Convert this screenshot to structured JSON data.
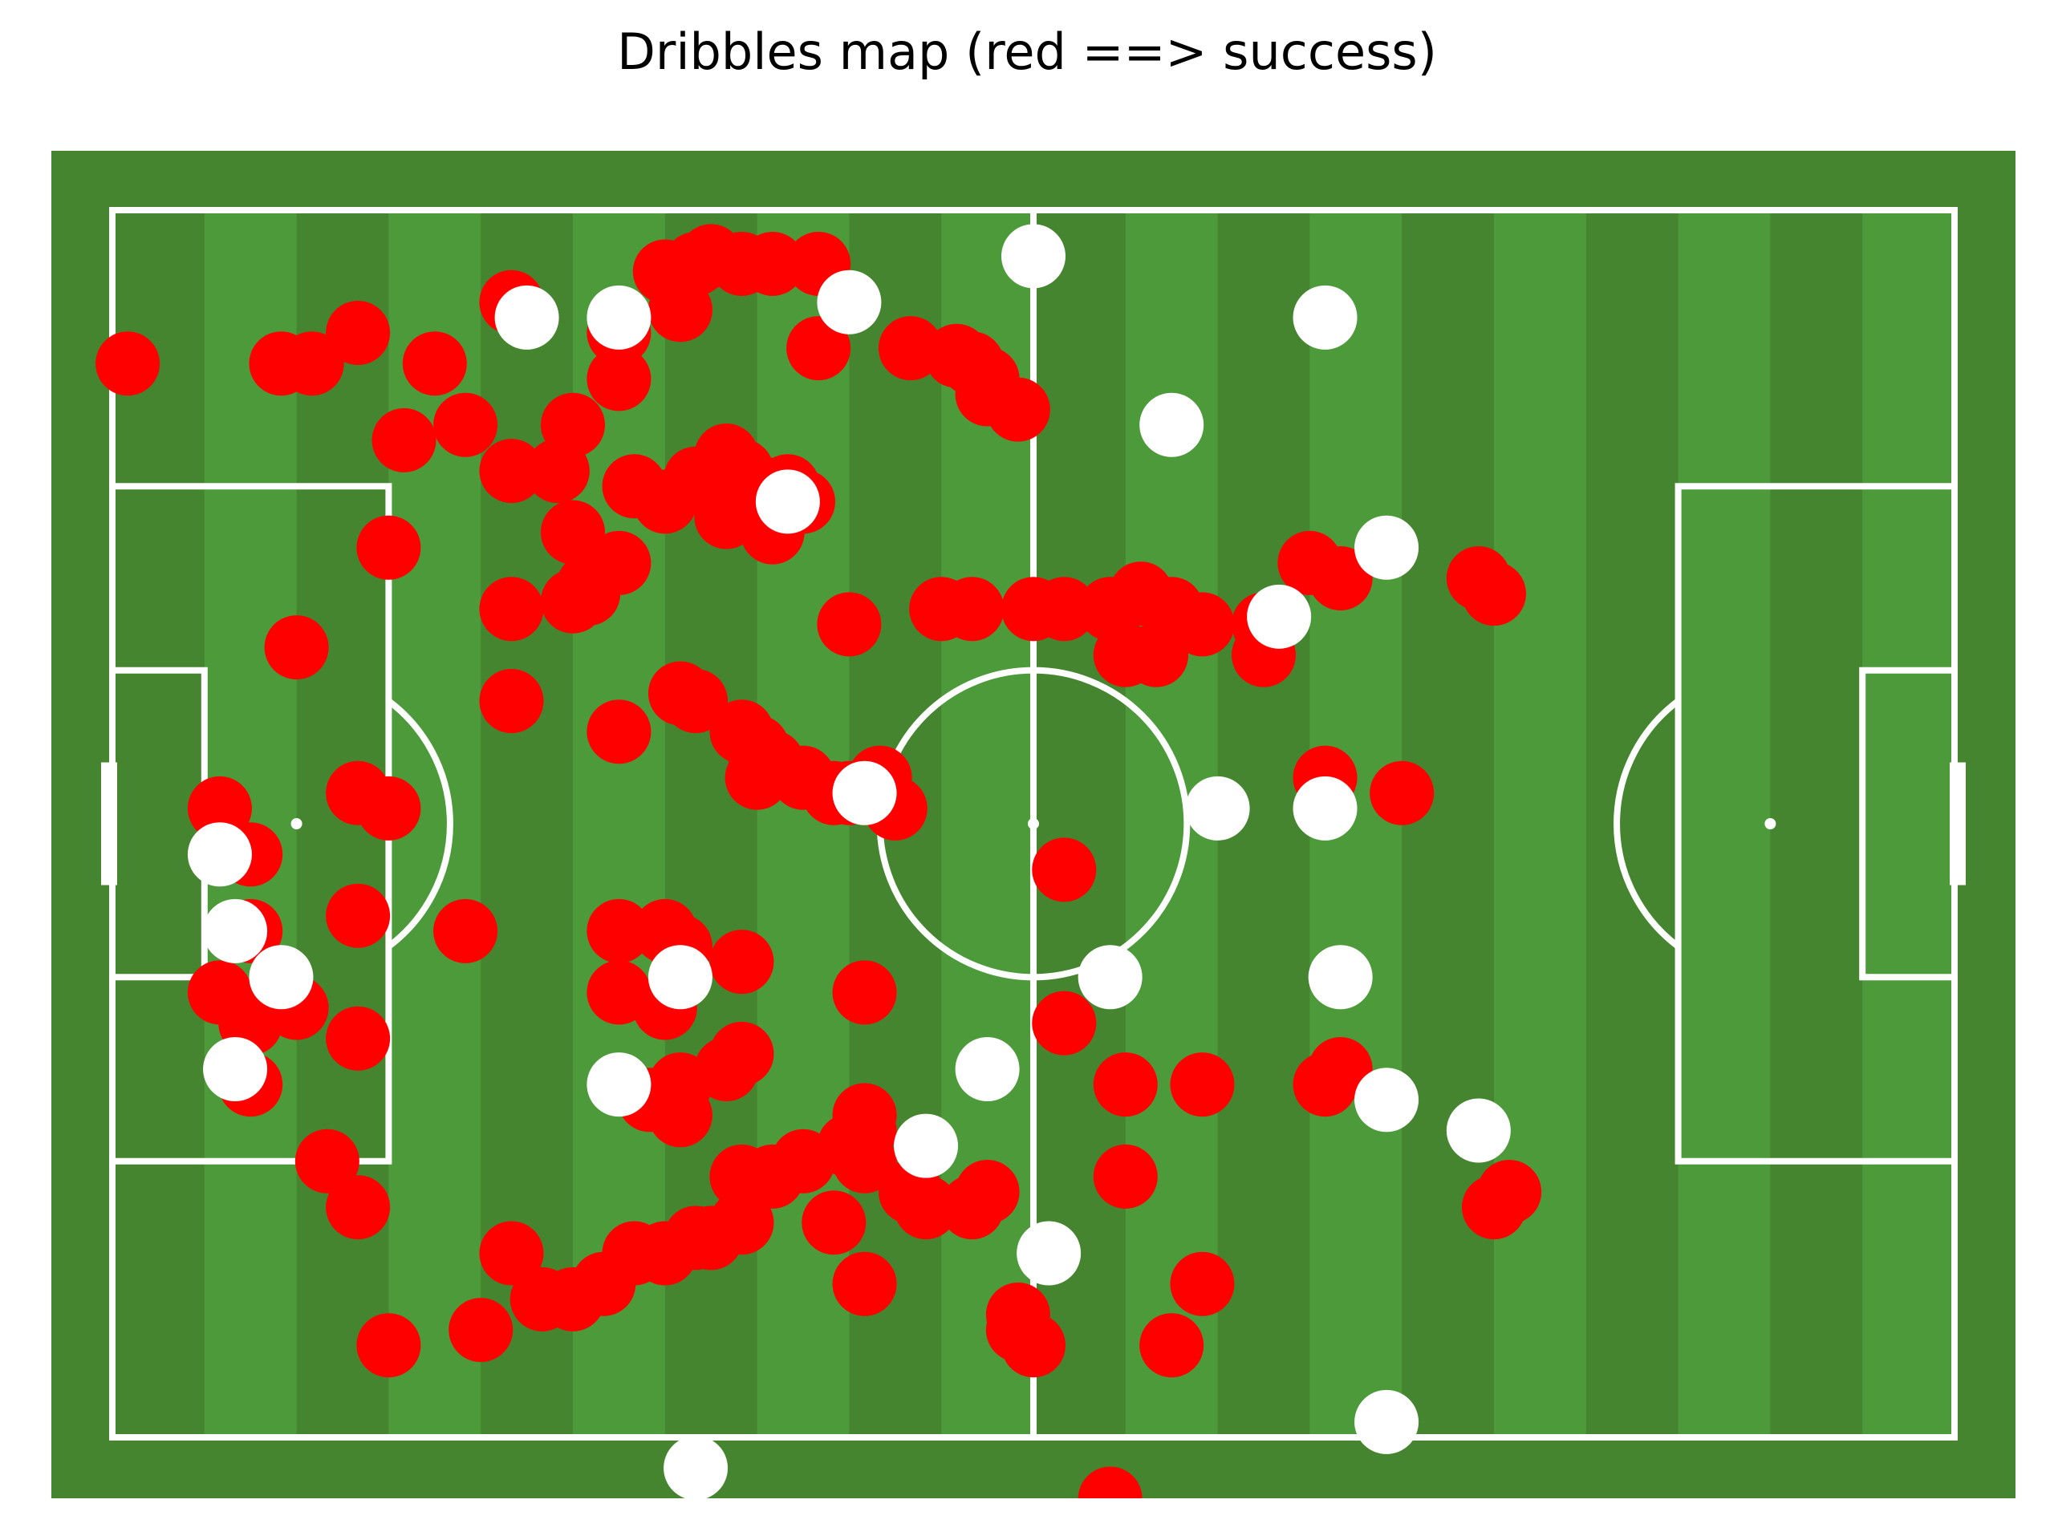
{
  "chart_data": {
    "type": "scatter",
    "title": "Dribbles map (red ==> success)",
    "xlabel": "",
    "ylabel": "",
    "xlim": [
      0,
      120
    ],
    "ylim": [
      0,
      80
    ],
    "y_inverted": true,
    "grid": false,
    "legend": "none",
    "colors": {
      "grass_light": "#4d9a3b",
      "grass_dark": "#45852f",
      "lines": "#ffffff",
      "success": "#ff0000",
      "fail": "#ffffff"
    },
    "series": [
      {
        "values_key": "success",
        "color": "#ff0000",
        "points": [
          [
            1,
            10
          ],
          [
            11,
            10
          ],
          [
            13,
            10
          ],
          [
            16,
            8
          ],
          [
            21,
            10
          ],
          [
            26,
            6
          ],
          [
            23,
            14
          ],
          [
            19,
            15
          ],
          [
            33,
            8
          ],
          [
            36,
            4
          ],
          [
            38,
            3.5
          ],
          [
            39,
            3
          ],
          [
            41,
            3.5
          ],
          [
            43,
            3.5
          ],
          [
            46,
            3.5
          ],
          [
            37,
            6.5
          ],
          [
            46,
            9
          ],
          [
            52,
            9
          ],
          [
            55,
            9.5
          ],
          [
            56,
            10
          ],
          [
            57,
            11
          ],
          [
            57,
            12
          ],
          [
            59,
            13
          ],
          [
            33,
            11
          ],
          [
            30,
            14
          ],
          [
            26,
            17
          ],
          [
            29,
            17
          ],
          [
            34,
            18
          ],
          [
            36,
            19
          ],
          [
            38,
            17.5
          ],
          [
            40,
            16
          ],
          [
            41,
            17
          ],
          [
            42,
            18
          ],
          [
            44,
            18
          ],
          [
            45,
            19
          ],
          [
            40,
            20
          ],
          [
            43,
            21
          ],
          [
            30,
            21
          ],
          [
            33,
            23
          ],
          [
            31,
            24.5
          ],
          [
            31,
            25
          ],
          [
            30,
            25.5
          ],
          [
            26,
            26
          ],
          [
            48,
            27
          ],
          [
            54,
            26
          ],
          [
            56,
            26
          ],
          [
            60,
            26
          ],
          [
            62,
            26
          ],
          [
            65,
            26
          ],
          [
            67,
            25
          ],
          [
            69,
            26
          ],
          [
            71,
            27
          ],
          [
            75,
            27
          ],
          [
            78,
            23
          ],
          [
            80,
            24
          ],
          [
            89,
            24
          ],
          [
            90,
            25
          ],
          [
            66,
            29
          ],
          [
            68,
            29
          ],
          [
            75,
            29
          ],
          [
            12,
            28.5
          ],
          [
            18,
            22
          ],
          [
            26,
            32
          ],
          [
            33,
            34
          ],
          [
            37,
            31.5
          ],
          [
            38,
            32
          ],
          [
            41,
            34
          ],
          [
            42,
            35
          ],
          [
            43,
            36
          ],
          [
            42,
            37
          ],
          [
            45,
            37
          ],
          [
            47,
            38
          ],
          [
            49,
            38
          ],
          [
            50,
            37
          ],
          [
            51,
            39
          ],
          [
            48,
            38
          ],
          [
            16,
            38
          ],
          [
            18,
            39
          ],
          [
            7,
            39
          ],
          [
            9,
            42
          ],
          [
            79,
            37
          ],
          [
            84,
            38
          ],
          [
            62,
            43
          ],
          [
            9,
            47
          ],
          [
            16,
            46
          ],
          [
            23,
            47
          ],
          [
            33,
            47
          ],
          [
            36,
            47
          ],
          [
            37,
            48
          ],
          [
            41,
            49
          ],
          [
            7,
            51
          ],
          [
            9,
            53
          ],
          [
            12,
            52
          ],
          [
            16,
            54
          ],
          [
            33,
            51
          ],
          [
            36,
            52
          ],
          [
            49,
            51
          ],
          [
            62,
            53
          ],
          [
            9,
            57
          ],
          [
            37,
            57
          ],
          [
            41,
            55
          ],
          [
            40,
            56
          ],
          [
            35,
            58
          ],
          [
            37,
            59
          ],
          [
            49,
            59
          ],
          [
            49,
            60
          ],
          [
            66,
            57
          ],
          [
            71,
            57
          ],
          [
            79,
            57
          ],
          [
            80,
            56
          ],
          [
            14,
            62
          ],
          [
            16,
            65
          ],
          [
            41,
            63
          ],
          [
            45,
            62
          ],
          [
            43,
            63
          ],
          [
            49,
            62
          ],
          [
            48,
            61
          ],
          [
            52,
            64
          ],
          [
            53,
            65
          ],
          [
            57,
            64
          ],
          [
            66,
            63
          ],
          [
            56,
            65
          ],
          [
            41,
            66
          ],
          [
            39,
            67
          ],
          [
            38,
            67
          ],
          [
            36,
            68
          ],
          [
            34,
            68
          ],
          [
            47,
            66
          ],
          [
            26,
            68
          ],
          [
            32,
            70
          ],
          [
            30,
            71
          ],
          [
            28,
            71
          ],
          [
            24,
            73
          ],
          [
            18,
            74
          ],
          [
            49,
            70
          ],
          [
            71,
            70
          ],
          [
            59,
            72
          ],
          [
            59,
            73
          ],
          [
            60,
            74
          ],
          [
            69,
            74
          ],
          [
            65,
            84
          ],
          [
            90,
            65
          ],
          [
            91,
            64
          ]
        ]
      },
      {
        "values_key": "fail",
        "color": "#ffffff",
        "points": [
          [
            27,
            7
          ],
          [
            33,
            7
          ],
          [
            48,
            6
          ],
          [
            60,
            3
          ],
          [
            79,
            7
          ],
          [
            69,
            14
          ],
          [
            44,
            19
          ],
          [
            83,
            22
          ],
          [
            76,
            26.5
          ],
          [
            7,
            42
          ],
          [
            49,
            38
          ],
          [
            72,
            39
          ],
          [
            79,
            39
          ],
          [
            8,
            47
          ],
          [
            11,
            50
          ],
          [
            37,
            50
          ],
          [
            65,
            50
          ],
          [
            80,
            50
          ],
          [
            8,
            56
          ],
          [
            33,
            57
          ],
          [
            57,
            56
          ],
          [
            53,
            61
          ],
          [
            83,
            58
          ],
          [
            89,
            60
          ],
          [
            61,
            68
          ],
          [
            38,
            82
          ],
          [
            83,
            79
          ]
        ]
      }
    ]
  }
}
